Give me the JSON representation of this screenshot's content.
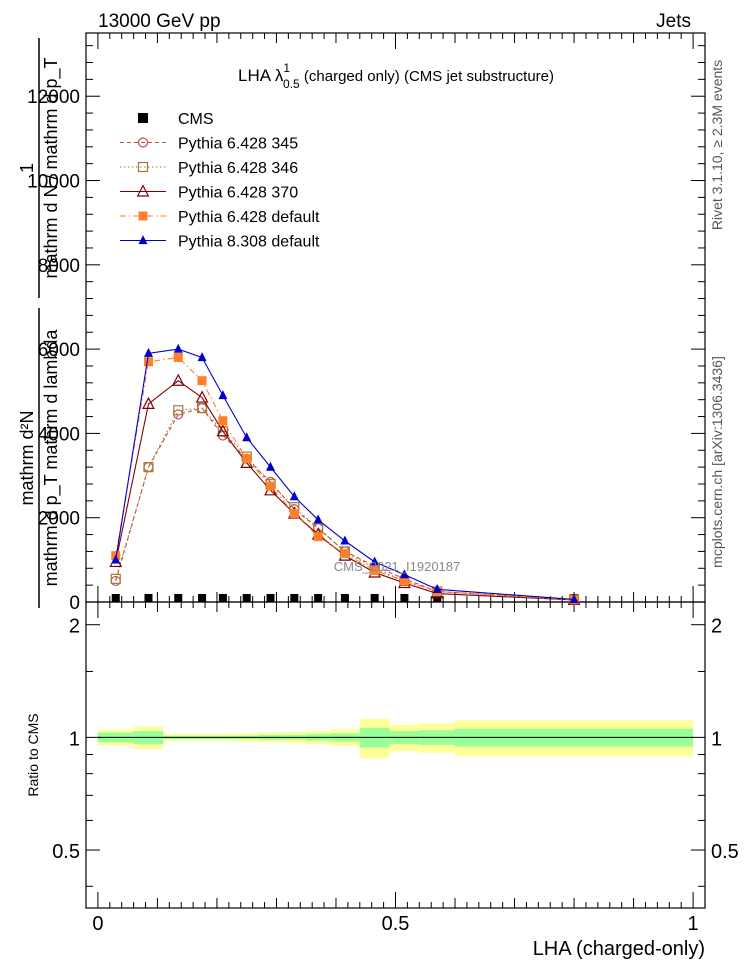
{
  "header": {
    "left": "13000 GeV pp",
    "right": "Jets"
  },
  "plot_title": {
    "main": "LHA λ",
    "sup": "1",
    "sub": "0.5",
    "rest": " (charged only) (CMS jet substructure)"
  },
  "ylabel": {
    "numerator": "mathrm d²N",
    "denominator": "mathrm d p_T mathrm d lambda",
    "prefix_num": "1",
    "prefix_den": "mathrm d N / mathrm d p_T"
  },
  "side_labels": {
    "rivet": "Rivet 3.1.10, ≥ 2.3M events",
    "mcplots": "mcplots.cern.ch [arXiv:1306.3436]"
  },
  "watermark": "CMS_2021_I1920187",
  "ratio_label": "Ratio to CMS",
  "xlabel": "LHA (charged-only)",
  "colors": {
    "cms": "#000000",
    "p345": "#c0504d",
    "p346": "#a07a3a",
    "p370": "#800000",
    "pdef": "#ff7f2a",
    "p8": "#0000cc",
    "band_inner": "#99ff99",
    "band_outer": "#ffff99"
  },
  "chart_data": {
    "type": "line",
    "xlim": [
      -0.02,
      1.02
    ],
    "ylim": [
      0,
      13500
    ],
    "yticks": [
      0,
      2000,
      4000,
      6000,
      8000,
      10000,
      12000
    ],
    "ytick_labels": [
      "0",
      "2000",
      "4000",
      "6000",
      "8000",
      "10000",
      "12000"
    ],
    "xticks": [
      0,
      0.5,
      1
    ],
    "xtick_labels": [
      "0",
      "0.5",
      "1"
    ],
    "x": [
      0.03,
      0.085,
      0.135,
      0.175,
      0.21,
      0.25,
      0.29,
      0.33,
      0.37,
      0.415,
      0.465,
      0.515,
      0.57,
      0.8
    ],
    "series": [
      {
        "name": "CMS",
        "values": [
          50,
          50,
          50,
          50,
          40,
          40,
          40,
          40,
          40,
          40,
          30,
          30,
          30,
          10
        ]
      },
      {
        "name": "Pythia 6.428 345",
        "values": [
          500,
          3200,
          4450,
          4600,
          3950,
          3400,
          2850,
          2200,
          1750,
          1200,
          850,
          550,
          250,
          60
        ]
      },
      {
        "name": "Pythia 6.428 346",
        "values": [
          550,
          3200,
          4550,
          4600,
          4050,
          3450,
          2800,
          2250,
          1750,
          1200,
          800,
          500,
          250,
          60
        ]
      },
      {
        "name": "Pythia 6.428 370",
        "values": [
          950,
          4700,
          5250,
          4850,
          4050,
          3300,
          2650,
          2100,
          1600,
          1100,
          700,
          450,
          200,
          50
        ]
      },
      {
        "name": "Pythia 6.428 default",
        "values": [
          1100,
          5700,
          5800,
          5250,
          4300,
          3400,
          2750,
          2100,
          1550,
          1150,
          750,
          500,
          250,
          50
        ]
      },
      {
        "name": "Pythia 8.308 default",
        "values": [
          1000,
          5900,
          6000,
          5800,
          4900,
          3900,
          3200,
          2500,
          1950,
          1450,
          950,
          650,
          300,
          60
        ]
      }
    ],
    "ratio": {
      "ylim": [
        0.35,
        2.3
      ],
      "yticks": [
        0.5,
        1,
        2
      ],
      "ytick_labels": [
        "0.5",
        "1",
        "2"
      ],
      "bins": [
        {
          "lo": 0.0,
          "hi": 0.06,
          "inner": 0.03,
          "outer": 0.05
        },
        {
          "lo": 0.06,
          "hi": 0.11,
          "inner": 0.04,
          "outer": 0.07
        },
        {
          "lo": 0.11,
          "hi": 0.16,
          "inner": 0.01,
          "outer": 0.02
        },
        {
          "lo": 0.16,
          "hi": 0.19,
          "inner": 0.01,
          "outer": 0.02
        },
        {
          "lo": 0.19,
          "hi": 0.23,
          "inner": 0.01,
          "outer": 0.02
        },
        {
          "lo": 0.23,
          "hi": 0.27,
          "inner": 0.01,
          "outer": 0.025
        },
        {
          "lo": 0.27,
          "hi": 0.31,
          "inner": 0.015,
          "outer": 0.03
        },
        {
          "lo": 0.31,
          "hi": 0.35,
          "inner": 0.015,
          "outer": 0.035
        },
        {
          "lo": 0.35,
          "hi": 0.39,
          "inner": 0.02,
          "outer": 0.04
        },
        {
          "lo": 0.39,
          "hi": 0.44,
          "inner": 0.025,
          "outer": 0.05
        },
        {
          "lo": 0.44,
          "hi": 0.49,
          "inner": 0.06,
          "outer": 0.12
        },
        {
          "lo": 0.49,
          "hi": 0.54,
          "inner": 0.04,
          "outer": 0.08
        },
        {
          "lo": 0.54,
          "hi": 0.6,
          "inner": 0.045,
          "outer": 0.09
        },
        {
          "lo": 0.6,
          "hi": 1.0,
          "inner": 0.055,
          "outer": 0.11
        }
      ]
    }
  }
}
